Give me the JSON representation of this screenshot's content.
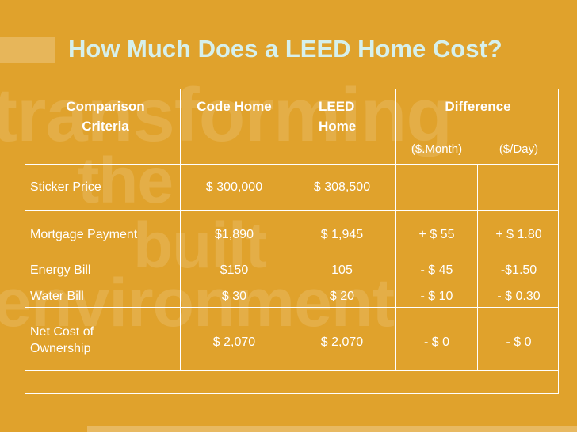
{
  "watermark": {
    "line1": "transforming",
    "line2": "the",
    "line3": "built",
    "line4": "environment"
  },
  "title": "How Much Does a LEED Home Cost?",
  "table": {
    "headers": {
      "criteria_line1": "Comparison",
      "criteria_line2": "Criteria",
      "code_home": "Code Home",
      "leed_line1": "LEED",
      "leed_line2": "Home",
      "difference": "Difference",
      "per_month": "($.Month)",
      "per_day": "($/Day)"
    },
    "rows": [
      {
        "label": "Sticker Price",
        "label2": "",
        "code": "$ 300,000",
        "leed": "$ 308,500",
        "month": "",
        "day": ""
      },
      {
        "label": "Mortgage Payment",
        "label2": "",
        "code": "$1,890",
        "leed": "$ 1,945",
        "month": "+ $ 55",
        "day": "+ $ 1.80"
      },
      {
        "label": "Energy Bill",
        "label2": "",
        "code": "$150",
        "leed": "105",
        "month": "- $ 45",
        "day": "-$1.50"
      },
      {
        "label": "Water Bill",
        "label2": "",
        "code": "$ 30",
        "leed": "$ 20",
        "month": "- $ 10",
        "day": "- $ 0.30"
      },
      {
        "label": "Net Cost of",
        "label2": "Ownership",
        "code": "$ 2,070",
        "leed": "$ 2,070",
        "month": "- $ 0",
        "day": "- $ 0"
      }
    ]
  },
  "colors": {
    "background": "#e0a22c",
    "title": "#d6f0ec",
    "text": "#ffffff"
  }
}
